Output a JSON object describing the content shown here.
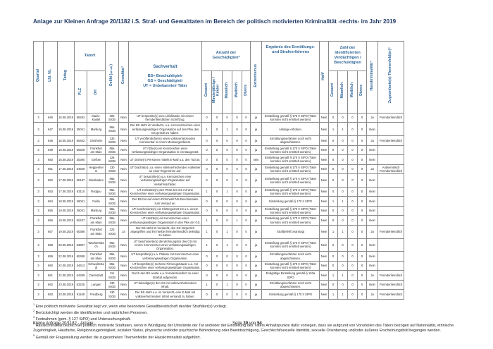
{
  "page": {
    "title": "Anlage zur Kleinen Anfrage 20/1182 i.S. Straf- und Gewalttaten im Bereich der politisch motivierten Kriminalität -rechts- im Jahr 2019",
    "footer_left": "Kleine Anfrage 20/1182 - Anlage",
    "footer_page": {
      "prefix": "Seite",
      "current": "39",
      "connector": "von",
      "total": "54"
    }
  },
  "table": {
    "headers": {
      "quartal": "Quartal",
      "lfd_nr": "Lfd. Nr.",
      "tattag": "Tattag",
      "tatort_group": "Tatort",
      "plz": "PLZ",
      "ort": "Ort",
      "delikt": "Delikt (§§)",
      "gewalttat": "Gewalttat¹",
      "sachverhalt": "Sachverhalt",
      "sachverhalt_legend": [
        "BS= Beschuldigte/r",
        "GS = Geschädigte/r",
        "UT = Unbekannte/r Täter"
      ],
      "geschaedigte_group": "Anzahl der Geschädigten²",
      "g_gesamt": "Gesamt",
      "g_minderjaehrige": "Minderjährige / Kinder",
      "g_maennlich": "Männlich",
      "g_weiblich": "Weiblich",
      "g_divers": "Divers",
      "extremismus": "Extremismus",
      "ergebnis": "Ergebnis des Ermittlungs- und Strafverfahrens",
      "haft": "Haft³",
      "verdaechtige_group": "Zahl der identifizierten Verdächtigen / Beschuldigten",
      "v_gesamt": "Gesamt",
      "v_maennlich": "Männlich",
      "v_weiblich": "Weiblich",
      "v_divers": "Divers",
      "hasskriminalitaet": "Hasskriminalität⁴",
      "themenfeld": "Zugeordnete(s) Themenfeld(er)⁵"
    },
    "rows": [
      {
        "quartal": "3",
        "nr": "646",
        "tattag": "15.08.2019",
        "plz": "55252",
        "ort": "Mainz-Kastel",
        "delikt": "303 StGB",
        "gewalttat": "Nein",
        "sachverhalt": "UT besprühte(n) eine Litfaßsäule mit einem fremdenfeindlichen Schriftzug.",
        "g": [
          "0",
          "0",
          "0",
          "0",
          "0"
        ],
        "extremismus": "ja",
        "ergebnis": "Einstellung gemäß § 170 II StPO (Täter konnten nicht ermittelt werden)",
        "haft": "Nein",
        "v": [
          "0",
          "0",
          "0",
          "0"
        ],
        "hasskriminalitaet": "Ja",
        "themenfeld": "Fremdenfeindlich"
      },
      {
        "quartal": "3",
        "nr": "647",
        "tattag": "16.08.2019",
        "plz": "35041",
        "ort": "Marburg",
        "delikt": "86a StGB",
        "gewalttat": "Nein",
        "sachverhalt": "Der BS steht im Verdacht, u.a. ein Kennzeichen einer verfassungswidrigen Organisation auf den Pkw des GS gemalt zu haben.",
        "g": [
          "1",
          "0",
          "1",
          "0",
          "0"
        ],
        "extremismus": "ja",
        "ergebnis": "Anklage erhoben.",
        "haft": "Nein",
        "v": [
          "1",
          "1",
          "0",
          "0"
        ],
        "hasskriminalitaet": "Nein",
        "themenfeld": ""
      },
      {
        "quartal": "3",
        "nr": "648",
        "tattag": "16.08.2019",
        "plz": "65462",
        "ort": "Ginsheim",
        "delikt": "130 StGB",
        "gewalttat": "Nein",
        "sachverhalt": "UT veröffentlichte(n) einen volksverhetzenden Kommentar in einem Messengerdienst.",
        "g": [
          "0",
          "0",
          "0",
          "0",
          "0"
        ],
        "extremismus": "ja",
        "ergebnis": "Ermittlungsverfahren noch nicht abgeschlossen.",
        "haft": "Nein",
        "v": [
          "0",
          "0",
          "0",
          "0"
        ],
        "hasskriminalitaet": "Ja",
        "themenfeld": "Fremdenfeindlich"
      },
      {
        "quartal": "3",
        "nr": "649",
        "tattag": "16.08.2019",
        "plz": "60528",
        "ort": "Frankfurt am Main",
        "delikt": "86a StGB",
        "gewalttat": "Nein",
        "sachverhalt": "UT ritzte(n) ein Kennzeichen einer verfassungswidrigen Organisation in ein Baugerüst.",
        "g": [
          "0",
          "0",
          "0",
          "0",
          "0"
        ],
        "extremismus": "ja",
        "ergebnis": "Einstellung gemäß § 170 II StPO (Täter konnten nicht ermittelt werden)",
        "haft": "Nein",
        "v": [
          "0",
          "0",
          "0",
          "0"
        ],
        "hasskriminalitaet": "Nein",
        "themenfeld": ""
      },
      {
        "quartal": "3",
        "nr": "650",
        "tattag": "16.08.2019",
        "plz": "35390",
        "ort": "Gießen",
        "delikt": "126 StGB",
        "gewalttat": "Nein",
        "sachverhalt": "UT drohte(n) Personen mittels E-Mail u.a. den Tod an.",
        "g": [
          "0",
          "0",
          "0",
          "0",
          "0"
        ],
        "extremismus": "nein",
        "ergebnis": "Einstellung gemäß § 170 II StPO (Täter konnten nicht ermittelt werden)",
        "haft": "Nein",
        "v": [
          "0",
          "0",
          "0",
          "0"
        ],
        "hasskriminalitaet": "Nein",
        "themenfeld": ""
      },
      {
        "quartal": "3",
        "nr": "651",
        "tattag": "17.08.2019",
        "plz": "64646",
        "ort": "Heppenheim",
        "delikt": "130 StGB",
        "gewalttat": "Nein",
        "sachverhalt": "UT brachte(n) u.a. einen volksverhetzenden Aufkleber an einer Regenrinne auf.",
        "g": [
          "0",
          "0",
          "0",
          "0",
          "0"
        ],
        "extremismus": "ja",
        "ergebnis": "Einstellung gemäß § 170 II StPO (Täter konnten nicht ermittelt werden)",
        "haft": "Nein",
        "v": [
          "0",
          "0",
          "0",
          "0"
        ],
        "hasskriminalitaet": "Ja",
        "themenfeld": "Antisemitisch Fremdenfeindlich"
      },
      {
        "quartal": "3",
        "nr": "652",
        "tattag": "17.08.2019",
        "plz": "65187",
        "ort": "Wiesbaden",
        "delikt": "86a StGB",
        "gewalttat": "Nein",
        "sachverhalt": "UT besprühte(n) u.a. Kennzeichen einer verfassungswidrigen Organisation auf Verkehrsschilder.",
        "g": [
          "0",
          "0",
          "0",
          "0",
          "0"
        ],
        "extremismus": "ja",
        "ergebnis": "Einstellung gemäß § 170 II StPO (Täter konnten nicht ermittelt werden)",
        "haft": "Nein",
        "v": [
          "0",
          "0",
          "0",
          "0"
        ],
        "hasskriminalitaet": "Nein",
        "themenfeld": ""
      },
      {
        "quartal": "3",
        "nr": "653",
        "tattag": "17.08.2019",
        "plz": "63110",
        "ort": "Rodgau",
        "delikt": "86a StGB",
        "gewalttat": "Nein",
        "sachverhalt": "UT zerkratzte(n) den PKW des GS mit drei Kennzeichen einer verfassungswidrigen Organisation.",
        "g": [
          "1",
          "0",
          "1",
          "0",
          "0"
        ],
        "extremismus": "ja",
        "ergebnis": "Einstellung gemäß § 170 II StPO (Täter konnten nicht ermittelt werden)",
        "haft": "Nein",
        "v": [
          "0",
          "0",
          "0",
          "0"
        ],
        "hasskriminalitaet": "Nein",
        "themenfeld": ""
      },
      {
        "quartal": "3",
        "nr": "654",
        "tattag": "18.08.2019",
        "plz": "36041",
        "ort": "Fulda",
        "delikt": "86a StGB",
        "gewalttat": "Nein",
        "sachverhalt": "Der BS bot auf einem Flohmarkt NS-Devotionalien zum Verkauf an.",
        "g": [
          "0",
          "0",
          "0",
          "0",
          "0"
        ],
        "extremismus": "ja",
        "ergebnis": "Einstellung gemäß § 170 II StPO",
        "haft": "Nein",
        "v": [
          "1",
          "1",
          "0",
          "0"
        ],
        "hasskriminalitaet": "Nein",
        "themenfeld": ""
      },
      {
        "quartal": "3",
        "nr": "655",
        "tattag": "19.08.2019",
        "plz": "35041",
        "ort": "Marburg",
        "delikt": "86a StGB",
        "gewalttat": "Nein",
        "sachverhalt": "UT beschmierte(n) ein Klettergerüst mit u.a. einem Kennzeichen einer verfassungswidrigen Organisation.",
        "g": [
          "0",
          "0",
          "0",
          "0",
          "0"
        ],
        "extremismus": "ja",
        "ergebnis": "Einstellung gemäß § 170 II StPO (Täter konnten nicht ermittelt werden)",
        "haft": "Nein",
        "v": [
          "0",
          "0",
          "0",
          "0"
        ],
        "hasskriminalitaet": "Nein",
        "themenfeld": ""
      },
      {
        "quartal": "3",
        "nr": "656",
        "tattag": "19.08.2019",
        "plz": "60437",
        "ort": "Frankfurt am Main",
        "delikt": "86a StGB",
        "gewalttat": "Nein",
        "sachverhalt": "UT kratzte(n) ein Kennzeichen einer verfassungswidrigen Organisation in den Pkw der GS.",
        "g": [
          "1",
          "0",
          "0",
          "1",
          "0"
        ],
        "extremismus": "ja",
        "ergebnis": "Einstellung gemäß § 170 II StPO (Täter konnten nicht ermittelt werden)",
        "haft": "Nein",
        "v": [
          "0",
          "0",
          "0",
          "0"
        ],
        "hasskriminalitaet": "Nein",
        "themenfeld": ""
      },
      {
        "quartal": "3",
        "nr": "657",
        "tattag": "19.08.2019",
        "plz": "60386",
        "ort": "Frankfurt am Main",
        "delikt": "223 StGB",
        "gewalttat": "Ja",
        "sachverhalt": "Der BS steht im Verdacht, den GS körperlich angegriffen und ihn hierbei fremdenfeindlich beleidigt zu haben.",
        "g": [
          "1",
          "0",
          "1",
          "0",
          "0"
        ],
        "extremismus": "ja",
        "ergebnis": "Strafbefehl beantragt",
        "haft": "Nein",
        "v": [
          "1",
          "1",
          "0",
          "0"
        ],
        "hasskriminalitaet": "Ja",
        "themenfeld": "Fremdenfeindlich"
      },
      {
        "quartal": "3",
        "nr": "658",
        "tattag": "20.08.2019",
        "plz": "63607",
        "ort": "Wächtersbach",
        "delikt": "86a StGB",
        "gewalttat": "Nein",
        "sachverhalt": "UT beschmierte(n) die Wohnungstür des GS mit einem Kennzeichen einer verfassungswidrigen Organisation.",
        "g": [
          "1",
          "0",
          "1",
          "0",
          "0"
        ],
        "extremismus": "ja",
        "ergebnis": "Einstellung gemäß § 170 II StPO (Täter konnten nicht ermittelt werden)",
        "haft": "Nein",
        "v": [
          "0",
          "0",
          "0",
          "0"
        ],
        "hasskriminalitaet": "Nein",
        "themenfeld": ""
      },
      {
        "quartal": "3",
        "nr": "659",
        "tattag": "22.08.2019",
        "plz": "60488",
        "ort": "Frankfurt am Main",
        "delikt": "86a StGB",
        "gewalttat": "Nein",
        "sachverhalt": "UT besprühte(n) u.a. Plakate mit Kennzeichen einer verfassungswidrigen Organisation.",
        "g": [
          "0",
          "0",
          "0",
          "0",
          "0"
        ],
        "extremismus": "ja",
        "ergebnis": "Ermittlungsverfahren noch nicht abgeschlossen.",
        "haft": "Nein",
        "v": [
          "0",
          "0",
          "0",
          "0"
        ],
        "hasskriminalitaet": "Nein",
        "themenfeld": ""
      },
      {
        "quartal": "3",
        "nr": "660",
        "tattag": "22.08.2019",
        "plz": "34613",
        "ort": "Schwalmstadt",
        "delikt": "86a StGB",
        "gewalttat": "Nein",
        "sachverhalt": "UT besprühte(n) mehrere Firmengebäude u.a. mit Kennzeichen einer verfassungswidrigen Organisation.",
        "g": [
          "0",
          "0",
          "0",
          "0",
          "0"
        ],
        "extremismus": "ja",
        "ergebnis": "Einstellung gemäß § 170 II StPO (Täter konnten nicht ermittelt werden)",
        "haft": "Nein",
        "v": [
          "0",
          "0",
          "0",
          "0"
        ],
        "hasskriminalitaet": "Nein",
        "themenfeld": ""
      },
      {
        "quartal": "3",
        "nr": "661",
        "tattag": "22.08.2019",
        "plz": "64289",
        "ort": "Darmstadt",
        "delikt": "111 StGB",
        "gewalttat": "Nein",
        "sachverhalt": "Durch den BS wurde u.a. fremdenfeindlich zu einer Straftat aufgerufen.",
        "g": [
          "0",
          "0",
          "0",
          "0",
          "0"
        ],
        "extremismus": "ja",
        "ergebnis": "Endgültige Einstellung gemäß § 153a StPO",
        "haft": "Nein",
        "v": [
          "1",
          "1",
          "0",
          "0"
        ],
        "hasskriminalitaet": "Ja",
        "themenfeld": "Fremdenfeindlich"
      },
      {
        "quartal": "3",
        "nr": "662",
        "tattag": "23.08.2019",
        "plz": "63225",
        "ort": "Langen",
        "delikt": "130 StGB",
        "gewalttat": "Nein",
        "sachverhalt": "UT beleidigte(n) den GS mit volksverhetzendem Inhalt.",
        "g": [
          "1",
          "0",
          "1",
          "0",
          "0"
        ],
        "extremismus": "ja",
        "ergebnis": "Ermittlungsverfahren noch nicht abgeschlossen.",
        "haft": "Nein",
        "v": [
          "0",
          "0",
          "0",
          "0"
        ],
        "hasskriminalitaet": "Nein",
        "themenfeld": "Fremdenfeindlich"
      },
      {
        "quartal": "3",
        "nr": "663",
        "tattag": "23.08.2019",
        "plz": "61169",
        "ort": "Friedberg",
        "delikt": "130 StGB",
        "gewalttat": "Nein",
        "sachverhalt": "Der BS steht u.a. im Verdacht, eine E-Mail mit volksverhetzendem Inhalt versandt zu haben.",
        "g": [
          "0",
          "0",
          "0",
          "0",
          "0"
        ],
        "extremismus": "ja",
        "ergebnis": "Einstellung gemäß § 170 II StPO",
        "haft": "Nein",
        "v": [
          "1",
          "1",
          "0",
          "0"
        ],
        "hasskriminalitaet": "Ja",
        "themenfeld": "Fremdenfeindlich"
      }
    ]
  },
  "footnotes": [
    {
      "marker": "1",
      "text": "Eine politisch motivierte Gewalttat liegt vor, wenn eine besondere Gewaltbereitschaft des/der Straftäter(s) vorliegt."
    },
    {
      "marker": "2",
      "text": "Berücksichtigt werden die identifizierten und natürlichen Personen."
    },
    {
      "marker": "3",
      "text": "Festnahmen (gem. § 127 StPO) und Untersuchungshaft."
    },
    {
      "marker": "4",
      "text": "Hasskriminalität bezeichnet politisch motivierte Straftaten, wenn in Würdigung der Umstände der Tat und/oder der Einstellung des Täters Anhaltspunkte dafür vorliegen, dass sie aufgrund von Vorurteilen des Täters bezogen auf Nationalität, ethnische Zugehörigkeit, Hautfarbe, Religionszugehörigkeit, sozialen Status, physische und/oder psychische Behinderung oder Beeinträchtigung, Geschlecht/sexuelle Identität, sexuelle Orientierung und/oder äußeres Erscheinungsbild begangen werden."
    },
    {
      "marker": "5",
      "text": "Gemäß der Fragestellung werden die zugeordneten Themenfelder der Hasskriminalität aufgeführt."
    }
  ]
}
